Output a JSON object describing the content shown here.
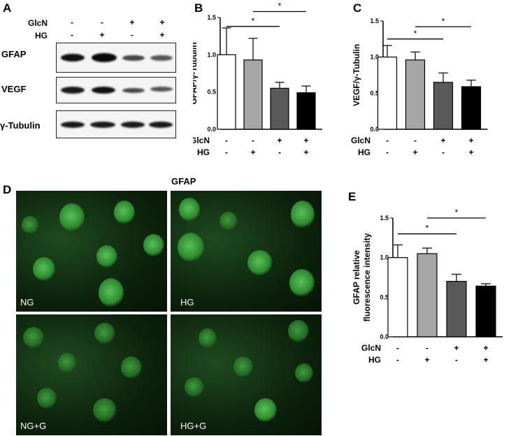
{
  "panels": {
    "a": "A",
    "b": "B",
    "c": "C",
    "d": "D",
    "e": "E"
  },
  "treatments": {
    "glcn_label": "GlcN",
    "hg_label": "HG",
    "glcn_signs": [
      "-",
      "-",
      "+",
      "+"
    ],
    "hg_signs": [
      "-",
      "+",
      "-",
      "+"
    ]
  },
  "blot": {
    "rows": [
      "GFAP",
      "VEGF",
      "γ-Tubulin"
    ]
  },
  "images": {
    "title": "GFAP",
    "labels": [
      "NG",
      "HG",
      "NG+G",
      "HG+G"
    ]
  },
  "significance_mark": "*",
  "chart_data": [
    {
      "type": "bar",
      "categories": [
        "1",
        "2",
        "3",
        "4"
      ],
      "values": [
        1.0,
        0.93,
        0.55,
        0.49
      ],
      "errors": [
        0.36,
        0.29,
        0.08,
        0.09
      ],
      "ylabel": "GFAP/γ-Tubulin",
      "ylim": [
        0,
        1.5
      ],
      "yticks": [
        "0.0",
        "0.5",
        "1.0",
        "1.5"
      ],
      "colors": [
        "#ffffff",
        "#a6a6a6",
        "#595959",
        "#000000"
      ]
    },
    {
      "type": "bar",
      "categories": [
        "1",
        "2",
        "3",
        "4"
      ],
      "values": [
        1.0,
        0.96,
        0.65,
        0.59
      ],
      "errors": [
        0.16,
        0.11,
        0.13,
        0.09
      ],
      "ylabel": "VEGF/γ-Tubulin",
      "ylim": [
        0,
        1.5
      ],
      "yticks": [
        "0.0",
        "0.5",
        "1.0",
        "1.5"
      ],
      "colors": [
        "#ffffff",
        "#a6a6a6",
        "#595959",
        "#000000"
      ]
    },
    {
      "type": "bar",
      "categories": [
        "1",
        "2",
        "3",
        "4"
      ],
      "values": [
        1.0,
        1.05,
        0.7,
        0.64
      ],
      "errors": [
        0.16,
        0.07,
        0.09,
        0.03
      ],
      "ylabel": "GFAP relative fluorescence intensity",
      "ylabel_lines": [
        "GFAP relative",
        "fluorescence intensity"
      ],
      "ylim": [
        0,
        1.5
      ],
      "yticks": [
        "0.0",
        "0.5",
        "1.0",
        "1.5"
      ],
      "colors": [
        "#ffffff",
        "#a6a6a6",
        "#595959",
        "#000000"
      ]
    }
  ]
}
